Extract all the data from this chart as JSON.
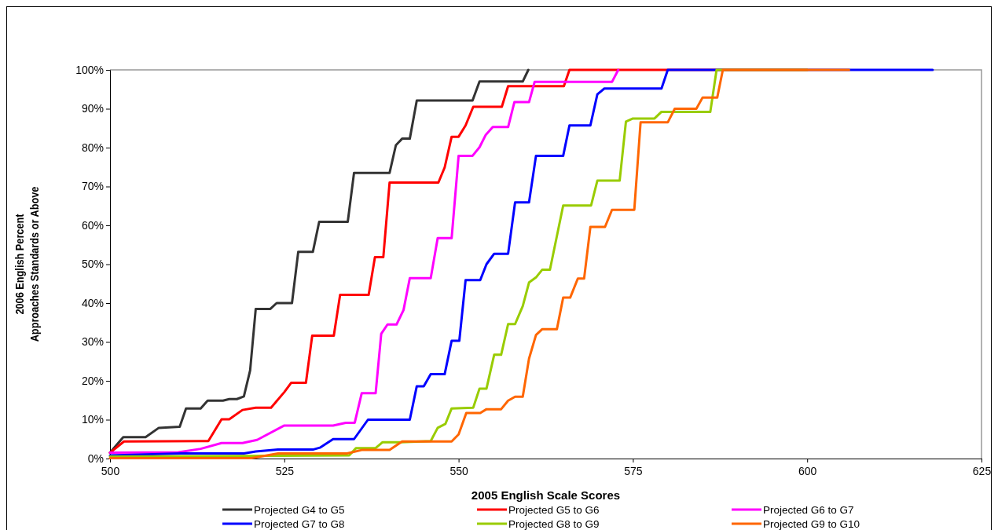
{
  "chart_data": {
    "type": "line",
    "xlabel": "2005 English Scale Scores",
    "ylabel": "2006 English Percent\nApproaches Standards or Above",
    "xlim": [
      500,
      625
    ],
    "xticks": [
      500,
      525,
      550,
      575,
      600,
      625
    ],
    "ylim": [
      0,
      100
    ],
    "yticks": [
      {
        "value": 0,
        "label": "0%"
      },
      {
        "value": 10,
        "label": "10%"
      },
      {
        "value": 20,
        "label": "20%"
      },
      {
        "value": 30,
        "label": "30%"
      },
      {
        "value": 40,
        "label": "40%"
      },
      {
        "value": 50,
        "label": "50%"
      },
      {
        "value": 60,
        "label": "60%"
      },
      {
        "value": 70,
        "label": "70%"
      },
      {
        "value": 80,
        "label": "80%"
      },
      {
        "value": 90,
        "label": "90%"
      },
      {
        "value": 100,
        "label": "100%"
      }
    ],
    "grid": false,
    "legend": "bottom",
    "marker": "none",
    "line_style": "solid",
    "series": [
      {
        "name": "Projected G4 to G5",
        "color": "#333333",
        "x": [
          500,
          501.9,
          505.1,
          507,
          510,
          510.9,
          513,
          514,
          516.2,
          517.1,
          518.2,
          519.2,
          520.1,
          520.9,
          523,
          523.9,
          526.1,
          527,
          529.1,
          530,
          534.1,
          535,
          540.1,
          541,
          541.9,
          543,
          544,
          552,
          553,
          559.2,
          560
        ],
        "values": [
          1.5,
          5.5,
          5.5,
          7.9,
          8.2,
          12.9,
          12.9,
          14.9,
          14.9,
          15.3,
          15.3,
          16,
          22.7,
          38.5,
          38.5,
          40,
          40,
          53.2,
          53.2,
          60.9,
          60.9,
          73.5,
          73.5,
          80.6,
          82.3,
          82.3,
          92.1,
          92.1,
          97,
          97,
          100
        ]
      },
      {
        "name": "Projected G5 to G6",
        "color": "#ff0000",
        "x": [
          500,
          502,
          514.1,
          516,
          517.1,
          519,
          520.9,
          523.1,
          525,
          526,
          528.1,
          529,
          532.1,
          533,
          537.1,
          538,
          539.2,
          540.1,
          547.1,
          548,
          549,
          550,
          551,
          552.1,
          556.2,
          557.1,
          565.1,
          565.9,
          600
        ],
        "values": [
          1.5,
          4.4,
          4.5,
          10.1,
          10.1,
          12.5,
          13.1,
          13.1,
          17.1,
          19.5,
          19.5,
          31.6,
          31.6,
          42.1,
          42.1,
          51.8,
          51.8,
          71,
          71,
          74.9,
          82.8,
          82.8,
          85.7,
          90.5,
          90.5,
          95.8,
          95.8,
          100,
          100
        ]
      },
      {
        "name": "Projected G6 to G7",
        "color": "#ff00ff",
        "x": [
          500,
          509.8,
          513,
          516,
          519,
          521.1,
          525,
          532,
          533.8,
          535.1,
          536.1,
          538.1,
          538.9,
          539.8,
          541.1,
          542.1,
          543,
          546,
          547,
          549,
          550,
          552,
          553,
          553.9,
          554.9,
          557.1,
          558,
          560.1,
          560.9,
          572,
          572.9
        ],
        "values": [
          1.5,
          1.6,
          2.5,
          4,
          4,
          4.8,
          8.5,
          8.5,
          9.2,
          9.2,
          16.8,
          16.8,
          32.1,
          34.5,
          34.5,
          38.2,
          46.4,
          46.4,
          56.7,
          56.7,
          77.9,
          77.9,
          80.1,
          83.3,
          85.3,
          85.3,
          91.7,
          91.7,
          96.9,
          96.9,
          100
        ]
      },
      {
        "name": "Projected G7 to G8",
        "color": "#0000ff",
        "x": [
          500,
          510.2,
          519.2,
          520.9,
          524.1,
          529.1,
          530.1,
          532,
          535,
          537,
          543,
          544,
          545,
          546,
          548,
          549,
          550.1,
          551,
          553.1,
          554,
          555.1,
          557.1,
          558.1,
          560.1,
          561.1,
          565,
          565.9,
          568.9,
          569.9,
          570.9,
          579.1,
          580,
          618
        ],
        "values": [
          0.8,
          1.3,
          1.3,
          1.8,
          2.3,
          2.3,
          2.8,
          5,
          5,
          10,
          10,
          18.6,
          18.6,
          21.7,
          21.7,
          30.3,
          30.3,
          45.9,
          45.9,
          50,
          52.7,
          52.7,
          65.9,
          65.9,
          77.9,
          77.9,
          85.7,
          85.7,
          93.7,
          95.2,
          95.2,
          100,
          100
        ]
      },
      {
        "name": "Projected G8 to G9",
        "color": "#99cc00",
        "x": [
          500,
          534.3,
          535.3,
          538.1,
          539.1,
          541.7,
          546,
          547,
          548.1,
          549,
          552.1,
          553,
          554,
          555.1,
          556.1,
          557.1,
          558.1,
          559.2,
          560.1,
          561.1,
          562,
          563.1,
          565,
          569,
          569.9,
          573.1,
          574,
          575,
          578.1,
          579.1,
          586.1,
          587,
          600
        ],
        "values": [
          0.5,
          0.8,
          2.7,
          2.7,
          4.2,
          4.2,
          4.5,
          7.9,
          8.9,
          12.9,
          13.1,
          18,
          18,
          26.7,
          26.7,
          34.6,
          34.6,
          39.2,
          45.3,
          46.6,
          48.6,
          48.6,
          65.1,
          65.1,
          71.5,
          71.5,
          86.7,
          87.5,
          87.5,
          89.2,
          89.2,
          100,
          100
        ]
      },
      {
        "name": "Projected G9 to G10",
        "color": "#ff6600",
        "x": [
          500,
          520.3,
          524.1,
          534,
          536.1,
          540.1,
          541.9,
          549,
          550,
          551.1,
          553.1,
          554,
          556.1,
          557.1,
          558.1,
          559.2,
          560.1,
          561.1,
          562,
          564.1,
          565,
          566,
          567.1,
          568,
          568.9,
          571,
          572,
          575.2,
          576.1,
          580,
          581,
          584.1,
          585,
          587.1,
          587.9,
          606
        ],
        "values": [
          0.1,
          0.1,
          1.3,
          1.3,
          2.2,
          2.2,
          4.4,
          4.4,
          6.2,
          11.7,
          11.7,
          12.7,
          12.7,
          14.9,
          15.9,
          15.9,
          25.7,
          31.8,
          33.3,
          33.3,
          41.4,
          41.4,
          46.3,
          46.3,
          59.6,
          59.6,
          64,
          64,
          86.5,
          86.5,
          90,
          90,
          92.9,
          92.9,
          100,
          100
        ]
      }
    ]
  }
}
